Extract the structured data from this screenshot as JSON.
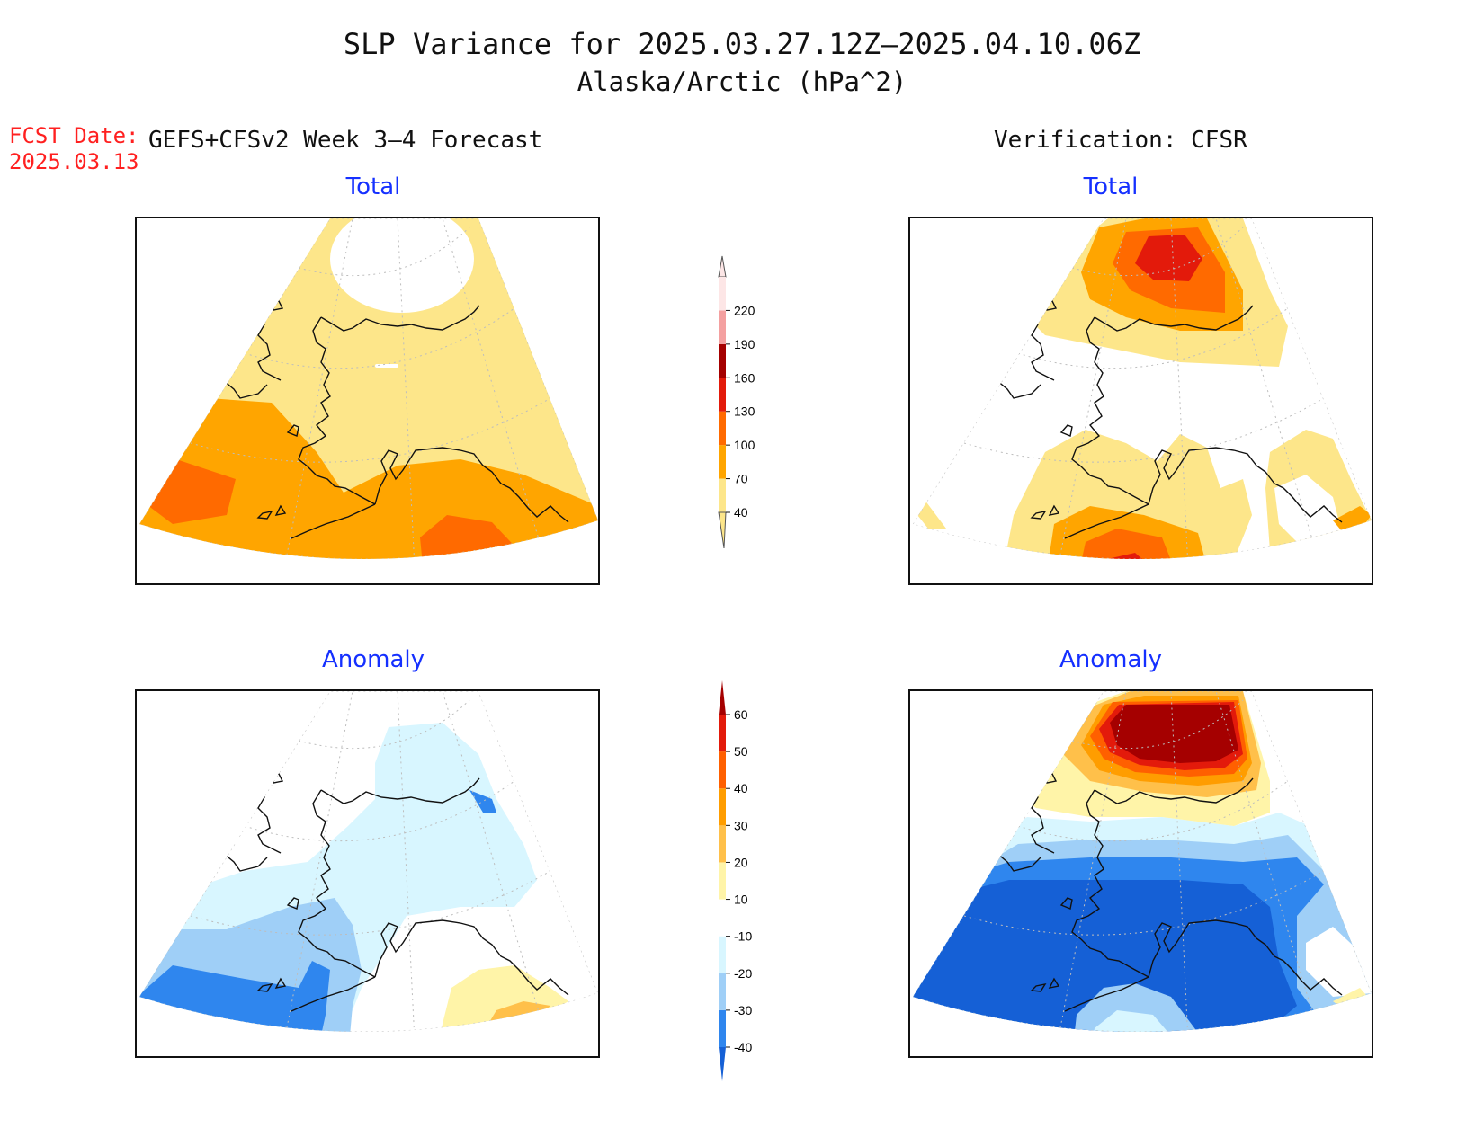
{
  "title": "SLP Variance for 2025.03.27.12Z–2025.04.10.06Z",
  "subtitle": "Alaska/Arctic (hPa^2)",
  "fcst_label": "FCST Date:",
  "fcst_date": "2025.03.13",
  "left_header": "GEFS+CFSv2 Week 3–4 Forecast",
  "right_header": "Verification: CFSR",
  "panels": {
    "top_left_title": "Total",
    "top_right_title": "Total",
    "bottom_left_title": "Anomaly",
    "bottom_right_title": "Anomaly"
  },
  "colorbars": {
    "total": {
      "labels": [
        "40",
        "70",
        "100",
        "130",
        "160",
        "190",
        "220"
      ],
      "colors": [
        "#fde68a",
        "#ffa500",
        "#ff6a00",
        "#e31a0b",
        "#a50000",
        "#f4a0a0",
        "#fde6e6"
      ]
    },
    "anomaly": {
      "labels": [
        "-40",
        "-30",
        "-20",
        "-10",
        "10",
        "20",
        "30",
        "40",
        "50",
        "60"
      ],
      "colors": [
        "#1560d6",
        "#2f86ee",
        "#9fcff7",
        "#d8f6ff",
        "#ffffff",
        "#fff4a8",
        "#ffc04a",
        "#ff9d00",
        "#ff6000",
        "#e31a0b",
        "#a50000"
      ]
    }
  }
}
